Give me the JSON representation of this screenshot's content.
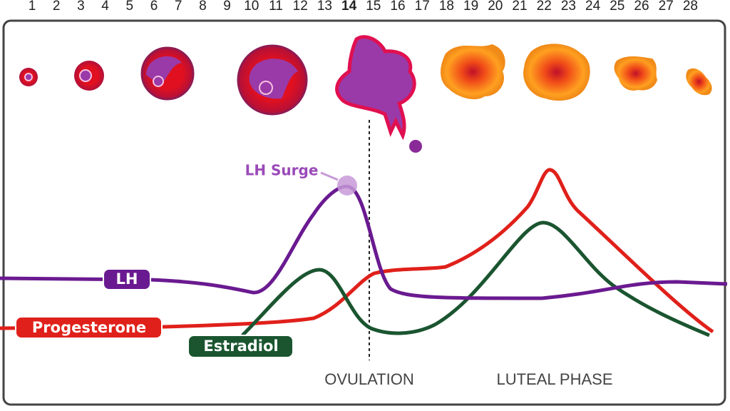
{
  "days": [
    1,
    2,
    3,
    4,
    5,
    6,
    7,
    8,
    9,
    10,
    11,
    12,
    13,
    14,
    15,
    16,
    17,
    18,
    19,
    20,
    21,
    22,
    23,
    24,
    25,
    26,
    27,
    28
  ],
  "labels": {
    "lh_surge": "LH Surge",
    "lh": "LH",
    "progesterone": "Progesterone",
    "estradiol": "Estradiol",
    "ovulation": "OVULATION",
    "luteal_phase": "LUTEAL PHASE"
  }
}
